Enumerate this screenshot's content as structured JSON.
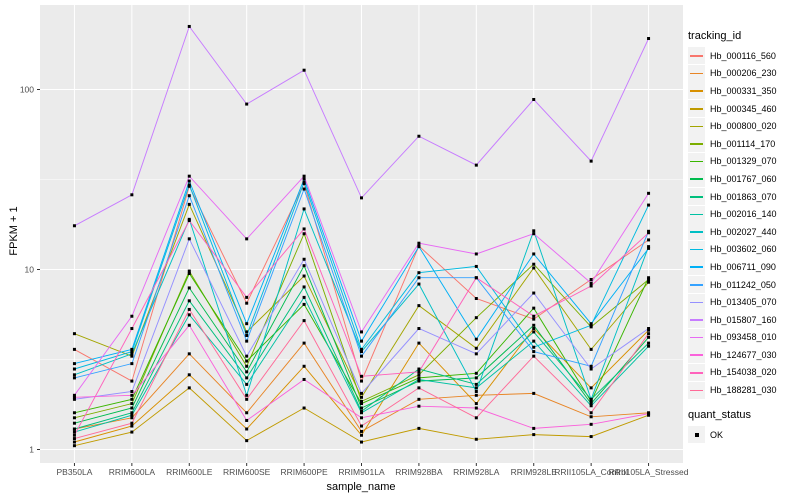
{
  "figure": {
    "x_axis_title": "sample_name",
    "y_axis_title": "FPKM + 1"
  },
  "legend": {
    "tracking_title": "tracking_id",
    "quant_title": "quant_status",
    "quant_ok_label": "OK"
  },
  "colors": {
    "panel_bg": "#EBEBEB",
    "grid": "#FFFFFF",
    "tick": "#333333",
    "tick_label": "#4D4D4D",
    "point": "#000000",
    "legend_key_bg": "#F2F2F2"
  },
  "chart_data": {
    "type": "line",
    "title": "",
    "xlabel": "sample_name",
    "ylabel": "FPKM + 1",
    "y_scale": "log10",
    "y_ticks": [
      1,
      10,
      100
    ],
    "y_minor_ticks": [
      3.1623,
      31.623
    ],
    "ylim": [
      0.85,
      295
    ],
    "grid": "on",
    "legend_position": "right",
    "point_shape": "square",
    "point_color": "#000000",
    "categories": [
      "PB350LA",
      "RRIM600LA",
      "RRIM600LE",
      "RRIM600SE",
      "RRIM600PE",
      "RRIM901LA",
      "RRIM928BA",
      "RRIM928LA",
      "RRIM928LE",
      "RRII105LA_Control",
      "RRII105LA_Stressed"
    ],
    "series": [
      {
        "name": "Hb_000116_560",
        "color": "#F8766D",
        "values": [
          3.6,
          2.4,
          29,
          6.5,
          30,
          2.4,
          13.5,
          6.9,
          5.3,
          8.8,
          14.6
        ]
      },
      {
        "name": "Hb_000206_230",
        "color": "#E88526",
        "values": [
          1.3,
          1.5,
          3.4,
          1.6,
          3.9,
          1.26,
          1.9,
          2.0,
          2.05,
          1.52,
          1.6
        ]
      },
      {
        "name": "Hb_000331_350",
        "color": "#D89000",
        "values": [
          1.1,
          1.35,
          2.6,
          1.3,
          2.9,
          1.2,
          3.9,
          1.8,
          4.7,
          2.2,
          4.6
        ]
      },
      {
        "name": "Hb_000345_460",
        "color": "#C09B00",
        "values": [
          1.05,
          1.25,
          2.2,
          1.12,
          1.7,
          1.1,
          1.31,
          1.14,
          1.21,
          1.18,
          1.55
        ]
      },
      {
        "name": "Hb_000800_020",
        "color": "#A3A500",
        "values": [
          4.4,
          3.3,
          23,
          4.5,
          9.2,
          1.95,
          6.3,
          3.65,
          10.2,
          3.6,
          8.5
        ]
      },
      {
        "name": "Hb_001114_170",
        "color": "#7CAE00",
        "values": [
          1.5,
          1.8,
          9.8,
          2.9,
          15.8,
          1.85,
          2.6,
          5.4,
          10.7,
          4.8,
          8.8
        ]
      },
      {
        "name": "Hb_001329_070",
        "color": "#39B600",
        "values": [
          1.6,
          1.9,
          9.5,
          3.1,
          6.4,
          1.8,
          2.5,
          2.65,
          6.1,
          1.85,
          9.0
        ]
      },
      {
        "name": "Hb_001767_060",
        "color": "#00BB4E",
        "values": [
          1.4,
          1.7,
          7.9,
          2.7,
          10.5,
          1.7,
          2.4,
          2.5,
          4.9,
          1.8,
          4.2
        ]
      },
      {
        "name": "Hb_001863_070",
        "color": "#00BF7D",
        "values": [
          1.3,
          1.6,
          6.7,
          2.5,
          8.0,
          1.63,
          2.8,
          2.3,
          4.5,
          1.9,
          3.9
        ]
      },
      {
        "name": "Hb_002016_140",
        "color": "#00C1A3",
        "values": [
          1.25,
          1.55,
          5.6,
          2.3,
          7.0,
          1.6,
          2.45,
          2.2,
          4.0,
          1.75,
          3.75
        ]
      },
      {
        "name": "Hb_002027_440",
        "color": "#00BFC4",
        "values": [
          2.6,
          3.4,
          19,
          2.0,
          21.7,
          3.5,
          8.3,
          2.1,
          16.4,
          1.9,
          13.4
        ]
      },
      {
        "name": "Hb_003602_060",
        "color": "#00BAE0",
        "values": [
          2.8,
          3.5,
          29.5,
          4.3,
          30.5,
          3.6,
          9.6,
          10.4,
          3.7,
          4.9,
          22.8
        ]
      },
      {
        "name": "Hb_006711_090",
        "color": "#00B0F6",
        "values": [
          3.0,
          3.6,
          31,
          5.0,
          31.8,
          4.0,
          13.4,
          4.1,
          12.2,
          5.0,
          13.1
        ]
      },
      {
        "name": "Hb_011242_050",
        "color": "#35A2FF",
        "values": [
          2.5,
          3.0,
          25.7,
          4.0,
          28,
          3.3,
          9.0,
          9.0,
          3.5,
          2.9,
          16.3
        ]
      },
      {
        "name": "Hb_013405_070",
        "color": "#9590FF",
        "values": [
          1.9,
          2.1,
          14.8,
          3.3,
          11.4,
          2.05,
          4.7,
          3.4,
          7.4,
          2.8,
          4.7
        ]
      },
      {
        "name": "Hb_015807_160",
        "color": "#C77CFF",
        "values": [
          17.5,
          26,
          224,
          83,
          128,
          25,
          55,
          38,
          88,
          40,
          192
        ]
      },
      {
        "name": "Hb_093458_010",
        "color": "#E76BF3",
        "values": [
          2.0,
          5.5,
          33,
          14.8,
          33,
          4.5,
          14,
          12.2,
          15.8,
          8.4,
          26.5
        ]
      },
      {
        "name": "Hb_124677_030",
        "color": "#FA62DB",
        "values": [
          1.95,
          2.0,
          4.9,
          1.45,
          2.45,
          1.5,
          1.74,
          1.7,
          1.31,
          1.38,
          1.58
        ]
      },
      {
        "name": "Hb_154038_020",
        "color": "#FF62BC",
        "values": [
          1.2,
          4.7,
          18.7,
          7.0,
          16.8,
          2.55,
          2.7,
          9.0,
          5.5,
          8.1,
          16.0
        ]
      },
      {
        "name": "Hb_188281_030",
        "color": "#FF6A98",
        "values": [
          1.15,
          1.4,
          6.0,
          1.9,
          5.2,
          1.35,
          2.2,
          1.5,
          3.3,
          1.6,
          4.4
        ]
      }
    ],
    "quant_status": [
      {
        "label": "OK",
        "shape": "square",
        "color": "#000000"
      }
    ]
  }
}
